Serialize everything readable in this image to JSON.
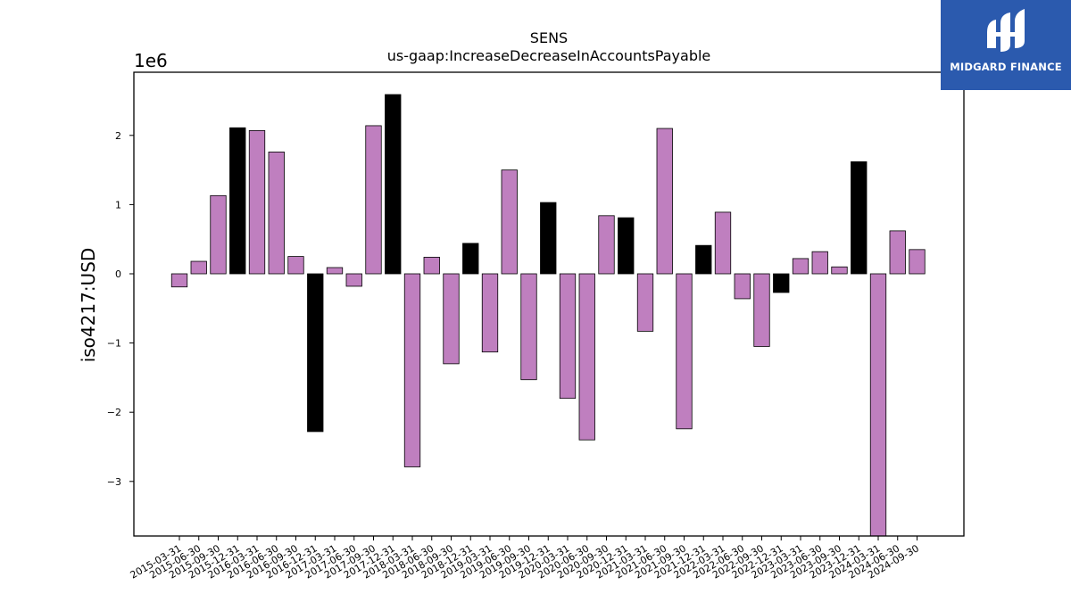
{
  "chart_data": {
    "type": "bar",
    "title": "SENS",
    "subtitle": "us-gaap:IncreaseDecreaseInAccountsPayable",
    "ylabel": "iso4217:USD",
    "y_scale_label": "1e6",
    "ylim": [
      -3.8,
      2.9
    ],
    "yticks": [
      2,
      1,
      0,
      -1,
      -2,
      -3
    ],
    "ytick_labels": [
      "2",
      "1",
      "0",
      "−1",
      "−2",
      "−3"
    ],
    "grid": false,
    "categories": [
      "2015-03-31",
      "2015-06-30",
      "2015-09-30",
      "2015-12-31",
      "2016-03-31",
      "2016-06-30",
      "2016-09-30",
      "2016-12-31",
      "2017-03-31",
      "2017-06-30",
      "2017-09-30",
      "2017-12-31",
      "2018-03-31",
      "2018-06-30",
      "2018-09-30",
      "2018-12-31",
      "2019-03-31",
      "2019-06-30",
      "2019-09-30",
      "2019-12-31",
      "2020-03-31",
      "2020-06-30",
      "2020-09-30",
      "2020-12-31",
      "2021-03-31",
      "2021-06-30",
      "2021-09-30",
      "2021-12-31",
      "2022-03-31",
      "2022-06-30",
      "2022-09-30",
      "2022-12-31",
      "2023-03-31",
      "2023-06-30",
      "2023-09-30",
      "2023-12-31",
      "2024-03-31",
      "2024-06-30",
      "2024-09-30"
    ],
    "values": [
      -0.19,
      0.18,
      1.13,
      2.11,
      2.07,
      1.76,
      0.25,
      -2.28,
      0.09,
      -0.18,
      2.14,
      2.59,
      -2.79,
      0.24,
      -1.3,
      0.44,
      -1.13,
      1.5,
      -1.53,
      1.03,
      -1.8,
      -2.4,
      0.84,
      0.81,
      -0.83,
      2.1,
      -2.24,
      0.41,
      0.89,
      -0.36,
      -1.05,
      -0.27,
      0.22,
      0.32,
      0.1,
      1.62,
      -3.8,
      0.62,
      0.35
    ],
    "highlight": [
      false,
      false,
      false,
      true,
      false,
      false,
      false,
      true,
      false,
      false,
      false,
      true,
      false,
      false,
      false,
      true,
      false,
      false,
      false,
      true,
      false,
      false,
      false,
      true,
      false,
      false,
      false,
      true,
      false,
      false,
      false,
      true,
      false,
      false,
      false,
      true,
      false,
      false,
      false
    ],
    "colors": {
      "bar": "#bf7fbf",
      "highlight": "#000000",
      "edge": "#000000"
    }
  },
  "logo": {
    "text": "MIDGARD FINANCE",
    "bg": "#2b5aae"
  }
}
